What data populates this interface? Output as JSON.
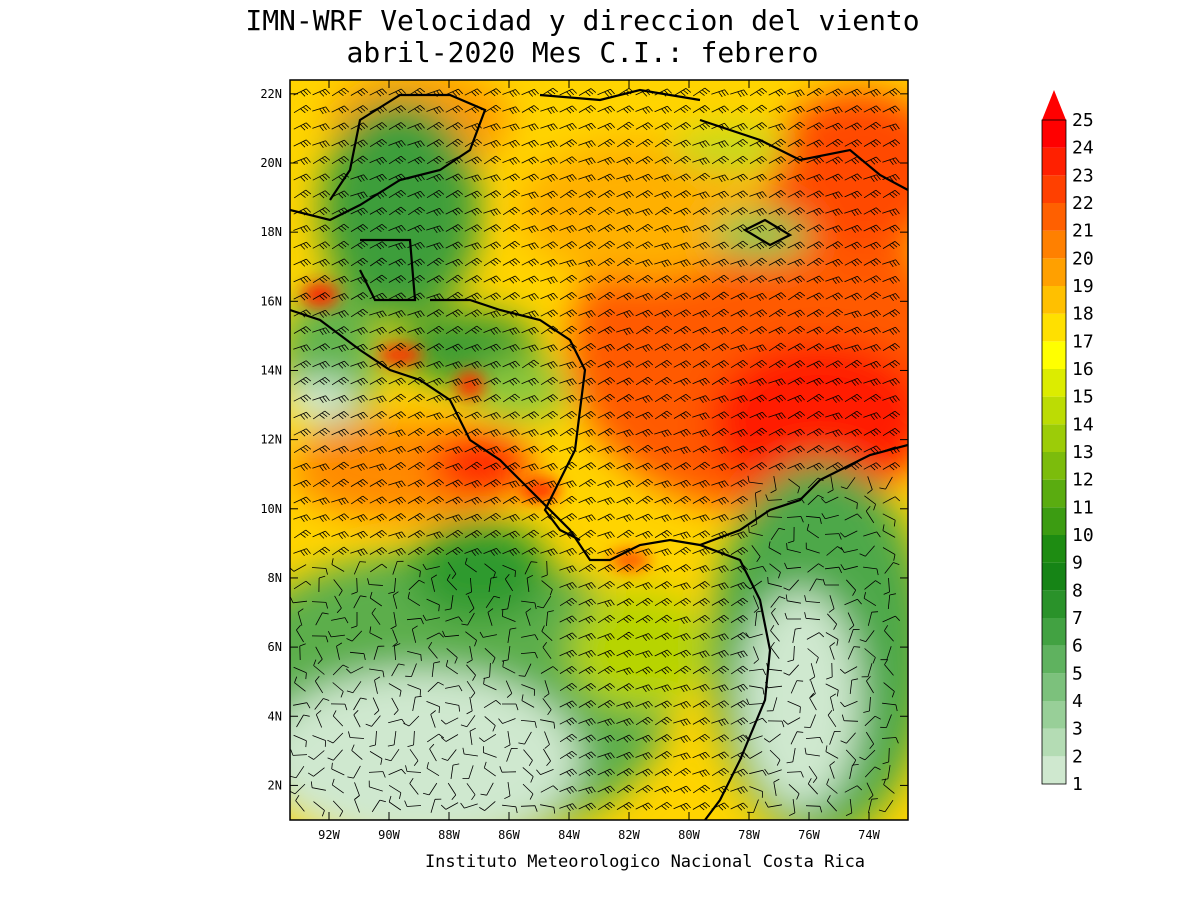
{
  "header": {
    "title_line1": "IMN-WRF Velocidad y direccion del viento",
    "title_line2": "abril-2020 Mes C.I.: febrero"
  },
  "footer": {
    "credit": "Instituto Meteorologico Nacional Costa Rica"
  },
  "chart_data": {
    "type": "heatmap",
    "map": "wind speed and direction over Central America and Caribbean",
    "x_ticks": [
      "92W",
      "90W",
      "88W",
      "86W",
      "84W",
      "82W",
      "80W",
      "78W",
      "76W",
      "74W"
    ],
    "x_tick_values": [
      -92,
      -90,
      -88,
      -86,
      -84,
      -82,
      -80,
      -78,
      -76,
      -74
    ],
    "y_ticks": [
      "22N",
      "20N",
      "18N",
      "16N",
      "14N",
      "12N",
      "10N",
      "8N",
      "6N",
      "4N",
      "2N"
    ],
    "y_tick_values": [
      22,
      20,
      18,
      16,
      14,
      12,
      10,
      8,
      6,
      4,
      2
    ],
    "xlim": [
      -93.3,
      -72.7
    ],
    "ylim": [
      1.0,
      22.4
    ],
    "colorbar": {
      "levels": [
        1,
        2,
        3,
        4,
        5,
        6,
        7,
        8,
        9,
        10,
        11,
        12,
        13,
        14,
        15,
        16,
        17,
        18,
        19,
        20,
        21,
        22,
        23,
        24,
        25
      ],
      "labels": [
        "1",
        "2",
        "3",
        "4",
        "5",
        "6",
        "7",
        "8",
        "9",
        "10",
        "11",
        "12",
        "13",
        "14",
        "15",
        "16",
        "17",
        "18",
        "19",
        "20",
        "21",
        "22",
        "23",
        "24",
        "25"
      ],
      "colors": [
        "#e8f3e8",
        "#cfe8cf",
        "#b4dcb4",
        "#98cf98",
        "#7cc17c",
        "#5fb25f",
        "#42a242",
        "#2a922a",
        "#168416",
        "#1e8c12",
        "#3c9c12",
        "#5aac10",
        "#7cbc0c",
        "#9ccc08",
        "#bcdc04",
        "#dcec00",
        "#ffff00",
        "#ffe000",
        "#ffc000",
        "#ffa000",
        "#ff8000",
        "#ff6000",
        "#ff4000",
        "#ff2000",
        "#ff0000"
      ],
      "extend": "max"
    }
  }
}
